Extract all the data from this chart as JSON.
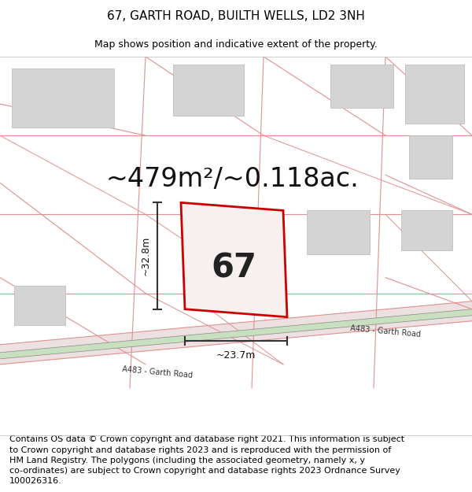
{
  "title": "67, GARTH ROAD, BUILTH WELLS, LD2 3NH",
  "subtitle": "Map shows position and indicative extent of the property.",
  "area_text": "~479m²/~0.118ac.",
  "number_label": "67",
  "dim_height": "~32.8m",
  "dim_width": "~23.7m",
  "road_label_left": "A483 - Garth Road",
  "road_label_right": "A483 - Garth Road",
  "footer_text": "Contains OS data © Crown copyright and database right 2021. This information is subject\nto Crown copyright and database rights 2023 and is reproduced with the permission of\nHM Land Registry. The polygons (including the associated geometry, namely x, y\nco-ordinates) are subject to Crown copyright and database rights 2023 Ordnance Survey\n100026316.",
  "map_bg": "#f2f0f0",
  "plot_edge_color": "#cc0000",
  "road_fill": "#c8e0c0",
  "road_outer_fill": "#e8d8d8",
  "building_fill": "#d4d4d4",
  "building_edge": "#c0c0c0",
  "pink_line": "#e09090",
  "dim_color": "#333333",
  "title_fontsize": 11,
  "subtitle_fontsize": 9,
  "area_fontsize": 24,
  "number_fontsize": 30,
  "footer_fontsize": 8
}
